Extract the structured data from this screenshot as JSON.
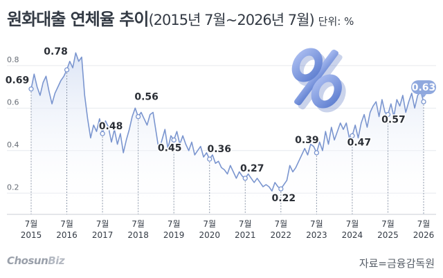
{
  "header": {
    "title_main": "원화대출 연체율 추이",
    "title_sub": "(2015년 7월~2026년 7월)",
    "unit": "단위: %"
  },
  "footer": {
    "logo_main": "Chosun",
    "logo_biz": "Biz",
    "source": "자료=금융감독원"
  },
  "colors": {
    "line": "#7a95cf",
    "area_top": "#dbe4f5",
    "point_fill": "#ffffff",
    "highlight_label": "#8fa8de",
    "percent_icon": "#7e9be0"
  },
  "chart_data": {
    "type": "line",
    "ylim": [
      0.1,
      0.92
    ],
    "ytick_values": [
      0.2,
      0.4,
      0.6,
      0.8
    ],
    "yticks": [
      "0.2",
      "0.4",
      "0.6",
      "0.8"
    ],
    "xticks": [
      {
        "month": "7월",
        "year": "2015"
      },
      {
        "month": "7월",
        "year": "2016"
      },
      {
        "month": "7월",
        "year": "2017"
      },
      {
        "month": "7월",
        "year": "2018"
      },
      {
        "month": "7월",
        "year": "2019"
      },
      {
        "month": "7월",
        "year": "2020"
      },
      {
        "month": "7월",
        "year": "2021"
      },
      {
        "month": "7월",
        "year": "2022"
      },
      {
        "month": "7월",
        "year": "2023"
      },
      {
        "month": "7월",
        "year": "2024"
      },
      {
        "month": "7월",
        "year": "2025"
      },
      {
        "month": "7월",
        "year": "2026"
      }
    ],
    "x_start": "2015-07",
    "values": [
      0.69,
      0.76,
      0.7,
      0.66,
      0.72,
      0.75,
      0.68,
      0.62,
      0.67,
      0.7,
      0.73,
      0.75,
      0.78,
      0.82,
      0.79,
      0.86,
      0.82,
      0.84,
      0.66,
      0.55,
      0.46,
      0.52,
      0.49,
      0.55,
      0.48,
      0.54,
      0.51,
      0.44,
      0.5,
      0.43,
      0.48,
      0.39,
      0.45,
      0.5,
      0.56,
      0.6,
      0.56,
      0.58,
      0.55,
      0.52,
      0.57,
      0.58,
      0.49,
      0.4,
      0.45,
      0.5,
      0.41,
      0.47,
      0.45,
      0.49,
      0.43,
      0.47,
      0.43,
      0.4,
      0.44,
      0.38,
      0.4,
      0.42,
      0.37,
      0.39,
      0.36,
      0.38,
      0.34,
      0.35,
      0.32,
      0.31,
      0.29,
      0.33,
      0.3,
      0.27,
      0.3,
      0.28,
      0.27,
      0.29,
      0.27,
      0.25,
      0.27,
      0.25,
      0.23,
      0.24,
      0.23,
      0.21,
      0.25,
      0.23,
      0.22,
      0.24,
      0.26,
      0.33,
      0.3,
      0.32,
      0.35,
      0.38,
      0.41,
      0.38,
      0.43,
      0.42,
      0.39,
      0.44,
      0.4,
      0.49,
      0.43,
      0.51,
      0.45,
      0.49,
      0.53,
      0.5,
      0.53,
      0.46,
      0.47,
      0.52,
      0.46,
      0.53,
      0.57,
      0.51,
      0.58,
      0.61,
      0.63,
      0.56,
      0.64,
      0.58,
      0.57,
      0.62,
      0.56,
      0.64,
      0.61,
      0.66,
      0.58,
      0.63,
      0.67,
      0.6,
      0.66,
      0.68,
      0.63
    ],
    "annotations": [
      {
        "label": "0.69",
        "index": 0,
        "value": 0.69
      },
      {
        "label": "0.78",
        "index": 12,
        "value": 0.78
      },
      {
        "label": "0.48",
        "index": 24,
        "value": 0.48
      },
      {
        "label": "0.56",
        "index": 36,
        "value": 0.56
      },
      {
        "label": "0.45",
        "index": 48,
        "value": 0.45
      },
      {
        "label": "0.36",
        "index": 60,
        "value": 0.36
      },
      {
        "label": "0.27",
        "index": 72,
        "value": 0.27
      },
      {
        "label": "0.22",
        "index": 84,
        "value": 0.22
      },
      {
        "label": "0.39",
        "index": 96,
        "value": 0.39
      },
      {
        "label": "0.47",
        "index": 108,
        "value": 0.47
      },
      {
        "label": "0.57",
        "index": 120,
        "value": 0.57
      },
      {
        "label": "0.63",
        "index": 132,
        "value": 0.63,
        "highlight": true
      }
    ],
    "title": "원화대출 연체율 추이",
    "grid": "horizontal"
  }
}
